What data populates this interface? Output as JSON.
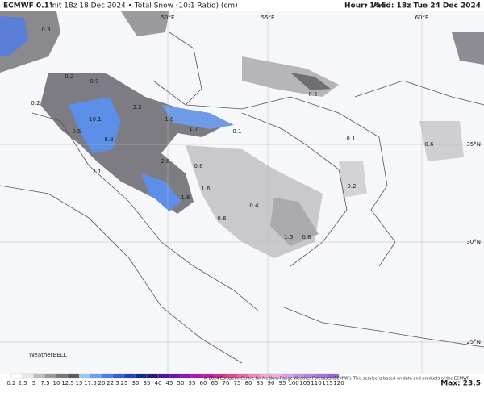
{
  "header": {
    "model": "ECMWF 0.1°",
    "run": "Init 18z 18 Dec 2024 • Total Snow (10:1 Ratio) (cm)",
    "hour": "Hour: 144",
    "valid": "• Valid: 18z Tue 24 Dec 2024"
  },
  "grid_labels": [
    "50°E",
    "55°E",
    "60°E",
    "35°N",
    "30°N",
    "25°N"
  ],
  "snow_labels": [
    0.3,
    0.2,
    0.9,
    0.2,
    3.2,
    10.1,
    0.5,
    8.8,
    1.8,
    1.7,
    0.1,
    0.5,
    0.1,
    0.6,
    2.1,
    2.6,
    0.6,
    1.6,
    1.6,
    0.4,
    0.6,
    0.2,
    1.5,
    0.8
  ],
  "logo": "WeatherBELL",
  "colorbar": {
    "ticks": [
      0.2,
      2.5,
      5,
      7.5,
      10,
      12.5,
      15,
      17.5,
      20,
      22.5,
      25,
      30,
      35,
      40,
      45,
      50,
      55,
      60,
      65,
      70,
      75,
      80,
      85,
      90,
      95,
      100,
      105,
      110,
      115,
      120
    ]
  },
  "copyright": "© 2024 European Centre for Medium-Range Weather Forecasts (ECMWF). This service is based on data and products of the ECMWF.",
  "max": "Max: 23.5"
}
